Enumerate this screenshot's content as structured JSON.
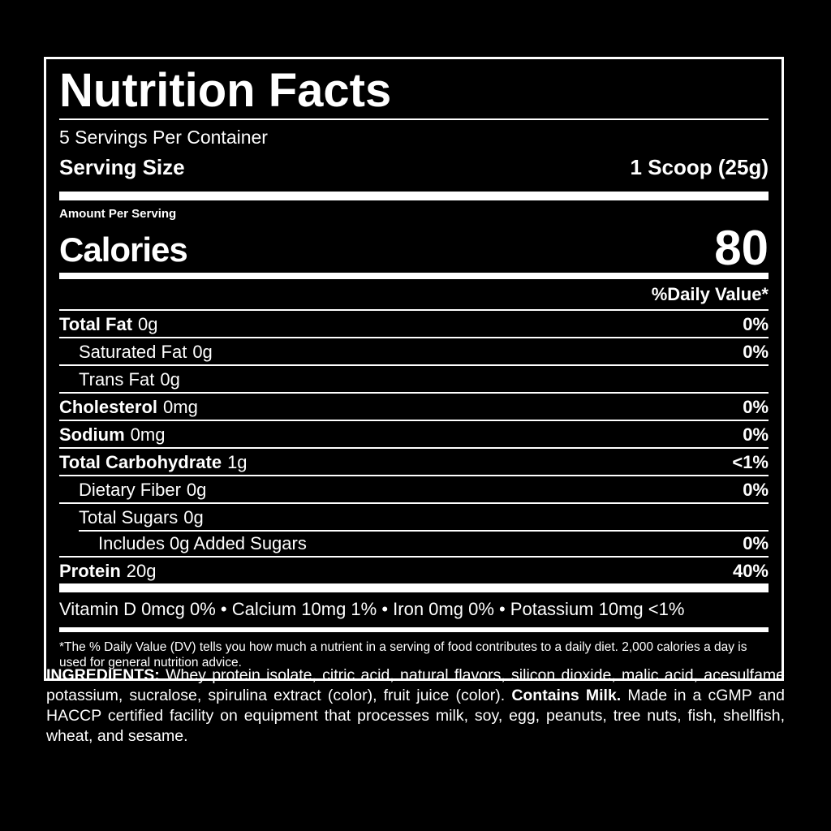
{
  "label": {
    "title": "Nutrition Facts",
    "servings_per_container": "5 Servings Per Container",
    "serving_size_label": "Serving Size",
    "serving_size_value": "1 Scoop (25g)",
    "amount_per_serving": "Amount Per Serving",
    "calories_label": "Calories",
    "calories_value": "80",
    "daily_value_header": "%Daily Value*",
    "rows": [
      {
        "name": "Total Fat",
        "amount": "0g",
        "dv": "0%"
      },
      {
        "name": "Saturated Fat",
        "amount": "0g",
        "dv": "0%"
      },
      {
        "name": "Trans Fat",
        "amount": "0g",
        "dv": ""
      },
      {
        "name": "Cholesterol",
        "amount": "0mg",
        "dv": "0%"
      },
      {
        "name": "Sodium",
        "amount": "0mg",
        "dv": "0%"
      },
      {
        "name": "Total Carbohydrate",
        "amount": "1g",
        "dv": "<1%"
      },
      {
        "name": "Dietary Fiber",
        "amount": "0g",
        "dv": "0%"
      },
      {
        "name": "Total Sugars",
        "amount": "0g",
        "dv": ""
      },
      {
        "name": "Includes 0g Added Sugars",
        "amount": "",
        "dv": "0%"
      },
      {
        "name": "Protein",
        "amount": "20g",
        "dv": "40%"
      }
    ],
    "micronutrients": "Vitamin D 0mcg 0% • Calcium 10mg 1% • Iron 0mg 0% • Potassium 10mg <1%",
    "footnote": "*The % Daily Value (DV) tells you how much a nutrient in a serving of food contributes to a daily diet. 2,000 calories a day is used for general nutrition advice.",
    "colors": {
      "background": "#000000",
      "foreground": "#ffffff"
    }
  },
  "ingredients": {
    "label": "INGREDIENTS:",
    "text_before_allergen": "Whey protein isolate, citric acid, natural flavors, silicon dioxide, malic acid, acesulfame potassium, sucralose, spirulina extract (color), fruit juice (color).",
    "allergen": "Contains Milk.",
    "text_after_allergen": "Made in a cGMP and HACCP certified facility on equipment that processes milk, soy, egg, peanuts, tree nuts, fish, shellfish, wheat, and sesame."
  }
}
